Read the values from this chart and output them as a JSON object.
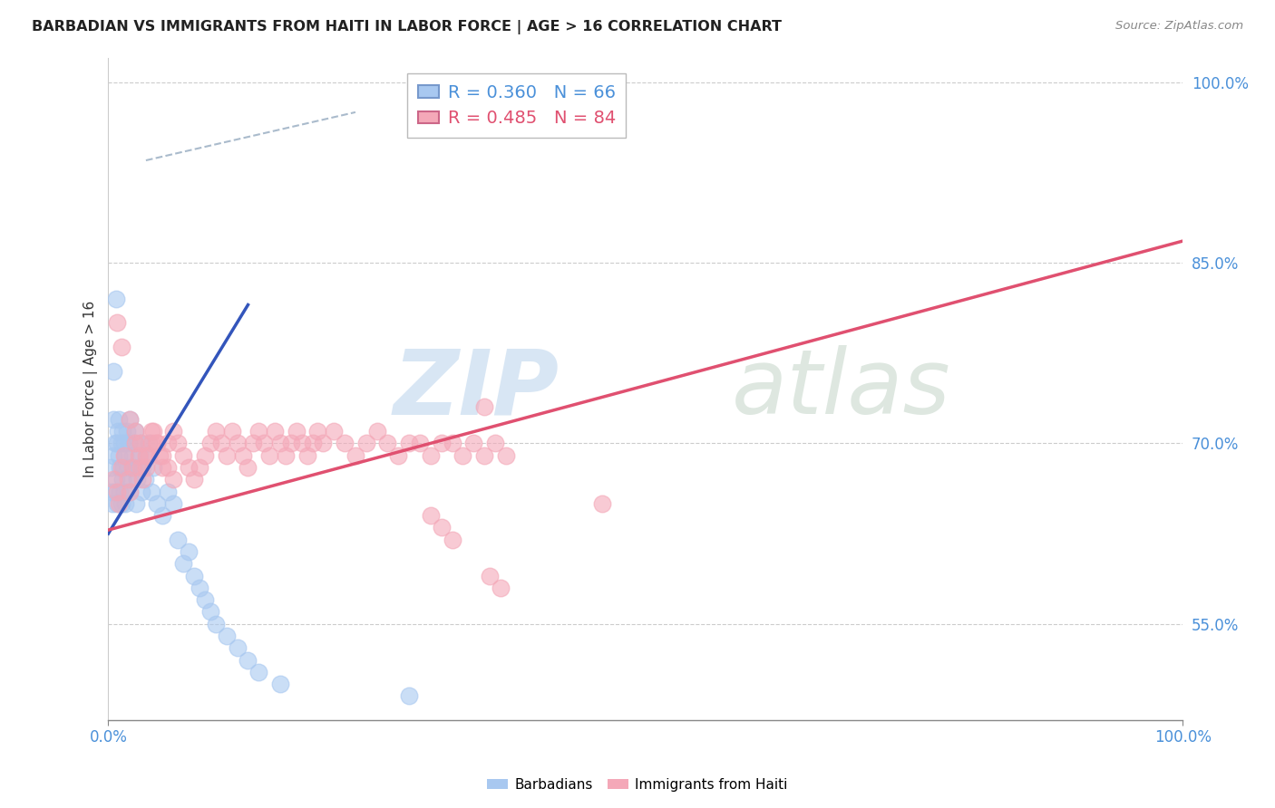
{
  "title": "BARBADIAN VS IMMIGRANTS FROM HAITI IN LABOR FORCE | AGE > 16 CORRELATION CHART",
  "source": "Source: ZipAtlas.com",
  "ylabel": "In Labor Force | Age > 16",
  "legend_barbadian": "R = 0.360   N = 66",
  "legend_haiti": "R = 0.485   N = 84",
  "color_barbadian": "#A8C8F0",
  "color_haiti": "#F4A8B8",
  "color_barbadian_line": "#3355BB",
  "color_haiti_line": "#E05070",
  "color_dashed_line": "#AABBCC",
  "xlim": [
    0.0,
    1.0
  ],
  "ylim": [
    0.47,
    1.02
  ],
  "yticks": [
    0.55,
    0.7,
    0.85,
    1.0
  ],
  "ytick_labels": [
    "55.0%",
    "70.0%",
    "85.0%",
    "100.0%"
  ],
  "xtick_left_label": "0.0%",
  "xtick_right_label": "100.0%",
  "barbadian_line_x": [
    0.0,
    0.13
  ],
  "barbadian_line_y": [
    0.625,
    0.815
  ],
  "haiti_line_x": [
    0.0,
    1.0
  ],
  "haiti_line_y": [
    0.628,
    0.868
  ],
  "dashed_line_x": [
    0.035,
    0.23
  ],
  "dashed_line_y": [
    0.935,
    0.975
  ],
  "barbadian_scatter_x": [
    0.002,
    0.003,
    0.004,
    0.005,
    0.005,
    0.006,
    0.006,
    0.007,
    0.008,
    0.008,
    0.009,
    0.01,
    0.01,
    0.011,
    0.011,
    0.012,
    0.012,
    0.013,
    0.013,
    0.014,
    0.015,
    0.015,
    0.016,
    0.016,
    0.017,
    0.018,
    0.019,
    0.02,
    0.02,
    0.021,
    0.022,
    0.023,
    0.024,
    0.025,
    0.026,
    0.027,
    0.028,
    0.029,
    0.03,
    0.031,
    0.032,
    0.034,
    0.036,
    0.038,
    0.04,
    0.042,
    0.045,
    0.05,
    0.055,
    0.06,
    0.065,
    0.07,
    0.075,
    0.08,
    0.085,
    0.09,
    0.095,
    0.1,
    0.11,
    0.12,
    0.13,
    0.14,
    0.16,
    0.005,
    0.007,
    0.28
  ],
  "barbadian_scatter_y": [
    0.68,
    0.66,
    0.65,
    0.69,
    0.72,
    0.7,
    0.66,
    0.67,
    0.65,
    0.7,
    0.71,
    0.69,
    0.72,
    0.66,
    0.68,
    0.7,
    0.65,
    0.71,
    0.67,
    0.68,
    0.7,
    0.66,
    0.69,
    0.65,
    0.71,
    0.68,
    0.7,
    0.66,
    0.72,
    0.67,
    0.69,
    0.68,
    0.7,
    0.71,
    0.65,
    0.67,
    0.68,
    0.69,
    0.7,
    0.66,
    0.68,
    0.67,
    0.69,
    0.7,
    0.66,
    0.68,
    0.65,
    0.64,
    0.66,
    0.65,
    0.62,
    0.6,
    0.61,
    0.59,
    0.58,
    0.57,
    0.56,
    0.55,
    0.54,
    0.53,
    0.52,
    0.51,
    0.5,
    0.76,
    0.82,
    0.49
  ],
  "haiti_scatter_x": [
    0.005,
    0.008,
    0.01,
    0.012,
    0.015,
    0.018,
    0.02,
    0.022,
    0.025,
    0.028,
    0.03,
    0.032,
    0.035,
    0.038,
    0.04,
    0.042,
    0.045,
    0.048,
    0.05,
    0.055,
    0.06,
    0.065,
    0.07,
    0.075,
    0.08,
    0.085,
    0.09,
    0.095,
    0.1,
    0.105,
    0.11,
    0.115,
    0.12,
    0.125,
    0.13,
    0.135,
    0.14,
    0.145,
    0.15,
    0.155,
    0.16,
    0.165,
    0.17,
    0.175,
    0.18,
    0.185,
    0.19,
    0.195,
    0.2,
    0.21,
    0.22,
    0.23,
    0.24,
    0.25,
    0.26,
    0.27,
    0.28,
    0.29,
    0.3,
    0.31,
    0.32,
    0.33,
    0.34,
    0.35,
    0.36,
    0.37,
    0.02,
    0.025,
    0.03,
    0.035,
    0.04,
    0.045,
    0.05,
    0.055,
    0.06,
    0.3,
    0.31,
    0.32,
    0.46,
    0.35,
    0.355,
    0.365,
    0.008,
    0.012
  ],
  "haiti_scatter_y": [
    0.67,
    0.66,
    0.65,
    0.68,
    0.69,
    0.67,
    0.66,
    0.68,
    0.7,
    0.69,
    0.68,
    0.67,
    0.68,
    0.69,
    0.7,
    0.71,
    0.7,
    0.69,
    0.68,
    0.7,
    0.71,
    0.7,
    0.69,
    0.68,
    0.67,
    0.68,
    0.69,
    0.7,
    0.71,
    0.7,
    0.69,
    0.71,
    0.7,
    0.69,
    0.68,
    0.7,
    0.71,
    0.7,
    0.69,
    0.71,
    0.7,
    0.69,
    0.7,
    0.71,
    0.7,
    0.69,
    0.7,
    0.71,
    0.7,
    0.71,
    0.7,
    0.69,
    0.7,
    0.71,
    0.7,
    0.69,
    0.7,
    0.7,
    0.69,
    0.7,
    0.7,
    0.69,
    0.7,
    0.69,
    0.7,
    0.69,
    0.72,
    0.71,
    0.7,
    0.69,
    0.71,
    0.7,
    0.69,
    0.68,
    0.67,
    0.64,
    0.63,
    0.62,
    0.65,
    0.73,
    0.59,
    0.58,
    0.8,
    0.78
  ]
}
